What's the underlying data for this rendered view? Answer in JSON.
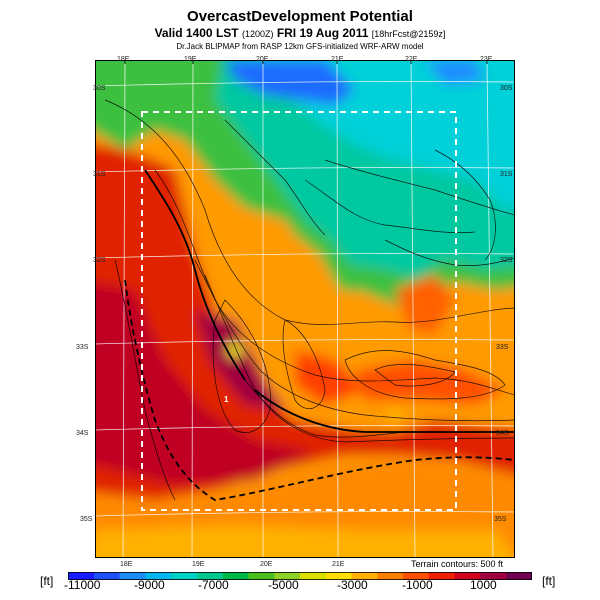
{
  "header": {
    "title": "OvercastDevelopment Potential",
    "valid_main": "Valid 1400 LST",
    "valid_utc": "(1200Z)",
    "valid_date": "FRI 19 Aug 2011",
    "valid_fcst": "[18hrFcst@2159z]",
    "source": "Dr.Jack BLIPMAP from RASP 12km GFS-initialized WRF-ARW model"
  },
  "map": {
    "lon_labels_top": [
      "18E",
      "19E",
      "20E",
      "21E",
      "22E",
      "23E"
    ],
    "lon_labels_bottom": [
      "18E",
      "19E",
      "20E",
      "21E"
    ],
    "lat_labels_left": [
      "30S",
      "31S",
      "32S",
      "33S",
      "34S",
      "35S"
    ],
    "lat_labels_right": [
      "30S",
      "31S",
      "32S",
      "33S",
      "34S",
      "35S"
    ],
    "marker": "1",
    "terrain_note": "Terrain contours: 500 ft"
  },
  "colorbar": {
    "unit": "[ft]",
    "labels": [
      "-11000",
      "-9000",
      "-7000",
      "-5000",
      "-3000",
      "-1000",
      "1000"
    ],
    "colors": [
      "#1a1aff",
      "#2050ff",
      "#1e8cff",
      "#00b8f0",
      "#00d0c8",
      "#00c890",
      "#00b848",
      "#48c020",
      "#90d020",
      "#d8e000",
      "#ffe000",
      "#ffb000",
      "#ff8000",
      "#ff5000",
      "#f02000",
      "#d00020",
      "#a00040",
      "#700050"
    ]
  }
}
